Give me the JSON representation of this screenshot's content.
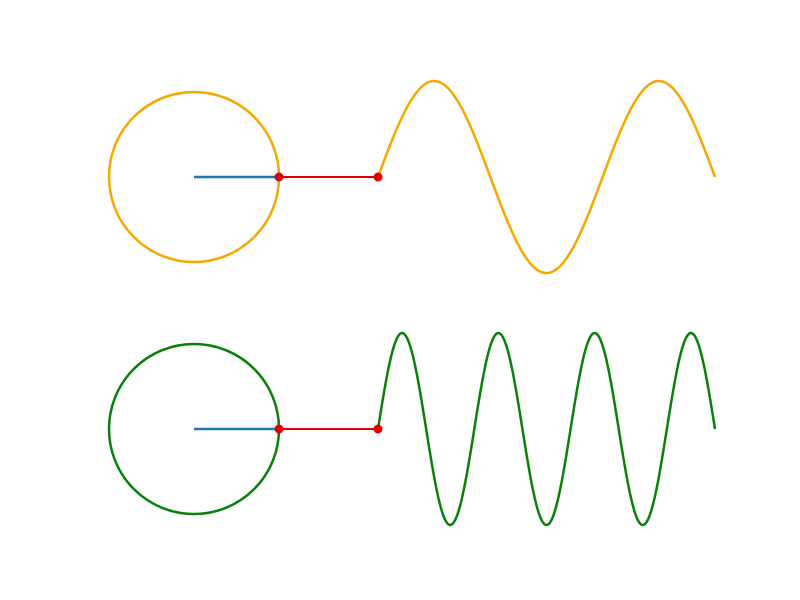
{
  "colors": {
    "background": "#ffffff",
    "radius": "#1f77b4",
    "connector": "#e00000",
    "point": "#e00000"
  },
  "panels": [
    {
      "name": "top",
      "color": "#f5a800",
      "cycles": 1.5,
      "phase": 0.0
    },
    {
      "name": "bottom",
      "color": "#0a800a",
      "cycles": 3.5,
      "phase": 0.0
    }
  ]
}
